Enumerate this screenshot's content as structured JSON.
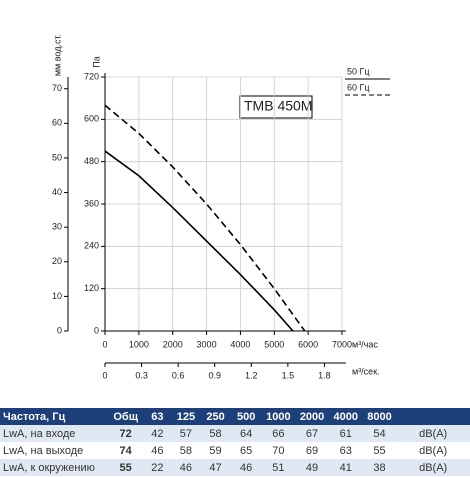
{
  "chart_data": {
    "type": "line",
    "title": "TMB 450M",
    "xlabel": "м³/час",
    "x2label": "м³/сек.",
    "ylabel": "Па",
    "y2label": "мм вод.ст.",
    "xlim": [
      0,
      7000
    ],
    "xticks": [
      0,
      1000,
      2000,
      3000,
      4000,
      5000,
      6000,
      7000
    ],
    "x2lim": [
      0,
      1.944
    ],
    "x2ticks": [
      0,
      0.3,
      0.6,
      0.9,
      1.2,
      1.5,
      1.8
    ],
    "ylim": [
      0,
      720
    ],
    "yticks": [
      0,
      120,
      240,
      360,
      480,
      600,
      720
    ],
    "y2lim": [
      0,
      73.4
    ],
    "y2ticks": [
      0,
      10,
      20,
      30,
      40,
      50,
      60,
      70
    ],
    "grid": true,
    "series": [
      {
        "name": "50 Гц",
        "color": "#000000",
        "line_style": "solid",
        "x": [
          0,
          1000,
          2000,
          3000,
          4000,
          5000,
          5550
        ],
        "values": [
          510,
          440,
          350,
          255,
          160,
          60,
          0
        ]
      },
      {
        "name": "60 Гц",
        "color": "#000000",
        "line_style": "dashed",
        "x": [
          0,
          1000,
          2000,
          3000,
          4000,
          5000,
          5900
        ],
        "values": [
          640,
          560,
          465,
          360,
          245,
          120,
          0
        ]
      }
    ]
  },
  "table": {
    "header": [
      "Частота, Гц",
      "Общ",
      "63",
      "125",
      "250",
      "500",
      "1000",
      "2000",
      "4000",
      "8000"
    ],
    "rows": [
      [
        "LwA, на входе",
        72,
        42,
        57,
        58,
        64,
        66,
        67,
        61,
        54,
        "dB(A)"
      ],
      [
        "LwA, на выходе",
        74,
        46,
        58,
        59,
        65,
        70,
        69,
        63,
        55,
        "dB(A)"
      ],
      [
        "LwA, к окружению",
        55,
        22,
        46,
        47,
        46,
        51,
        49,
        41,
        38,
        "dB(A)"
      ]
    ]
  }
}
